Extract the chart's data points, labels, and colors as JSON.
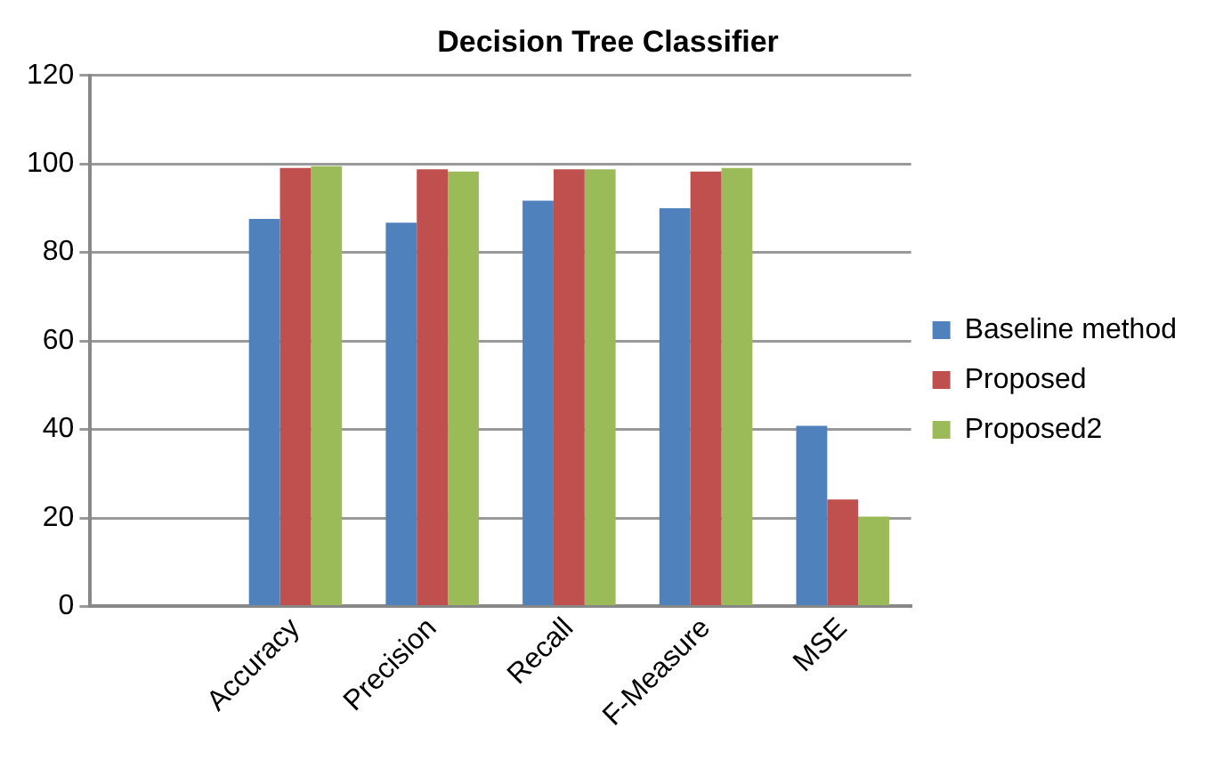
{
  "chart_data": {
    "type": "bar",
    "title": "Decision Tree Classifier",
    "categories": [
      null,
      "Accuracy",
      "Precision",
      "Recall",
      "F-Measure",
      "MSE"
    ],
    "series": [
      {
        "name": "Baseline method",
        "color": "#4f81bd",
        "values": [
          null,
          87.6,
          86.7,
          91.7,
          90.0,
          40.8
        ]
      },
      {
        "name": "Proposed",
        "color": "#c0504d",
        "values": [
          null,
          99.1,
          98.8,
          98.8,
          98.3,
          24.2
        ]
      },
      {
        "name": "Proposed2",
        "color": "#9bbb59",
        "values": [
          null,
          99.5,
          98.3,
          98.8,
          99.1,
          20.3
        ]
      }
    ],
    "ylim": [
      0,
      120
    ],
    "yticks": [
      0,
      20,
      40,
      60,
      80,
      100,
      120
    ],
    "grid": "y",
    "legend": "right"
  }
}
